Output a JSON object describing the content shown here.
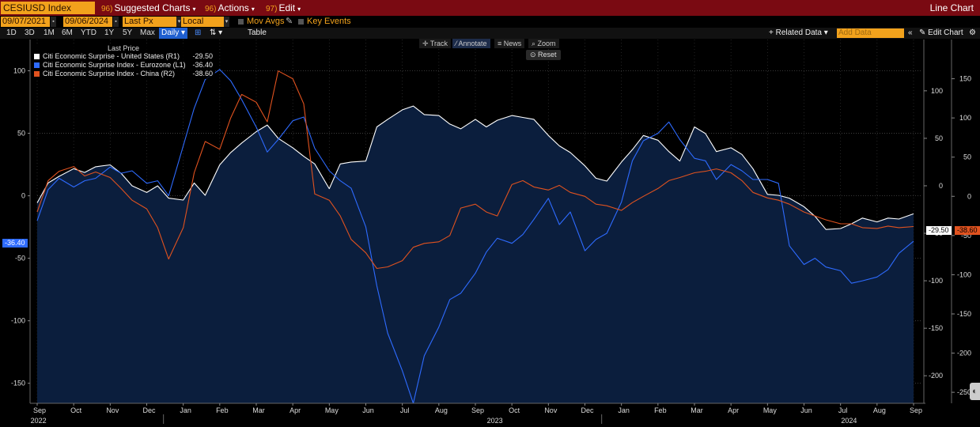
{
  "topbar": {
    "ticker": "CESIUSD Index",
    "menus": [
      {
        "num": "96)",
        "label": "Suggested Charts"
      },
      {
        "num": "96)",
        "label": "Actions"
      },
      {
        "num": "97)",
        "label": "Edit"
      }
    ],
    "chart_type": "Line Chart"
  },
  "fields": {
    "start_date": "09/07/2021",
    "end_date": "09/06/2024",
    "price_field": "Last Px",
    "currency": "Local CCY",
    "mov_avgs": "Mov Avgs",
    "key_events": "Key Events"
  },
  "periods": [
    "1D",
    "3D",
    "1M",
    "6M",
    "YTD",
    "1Y",
    "5Y",
    "Max"
  ],
  "frequency": "Daily",
  "table_label": "Table",
  "related_data": "+ Related Data",
  "add_data_placeholder": "Add Data",
  "edit_chart": "Edit Chart",
  "tools": {
    "track": "Track",
    "annotate": "Annotate",
    "news": "News",
    "zoom": "Zoom",
    "reset": "Reset"
  },
  "legend": {
    "title": "Last Price",
    "items": [
      {
        "name": "Citi Economic Surprise - United States  (R1)",
        "value": "-29.50",
        "color": "#ffffff"
      },
      {
        "name": "Citi Economic Surprise Index - Eurozone  (L1)",
        "value": "-36.40",
        "color": "#2e6bff"
      },
      {
        "name": "Citi Economic Surprise Index - China  (R2)",
        "value": "-38.60",
        "color": "#e0521f"
      }
    ]
  },
  "tags": {
    "eurozone": "-36.40",
    "us": "-29.50",
    "china": "-38.60"
  },
  "colors": {
    "bar_red": "#7a0a12",
    "field_orange": "#f2a21c",
    "us": "#ffffff",
    "eurozone": "#2e6bff",
    "china": "#e0521f",
    "fill": "#0b1e3d"
  },
  "chart_data": {
    "type": "line",
    "x_months": [
      "Sep",
      "Oct",
      "Nov",
      "Dec",
      "Jan",
      "Feb",
      "Mar",
      "Apr",
      "May",
      "Jun",
      "Jul",
      "Aug",
      "Sep",
      "Oct",
      "Nov",
      "Dec",
      "Jan",
      "Feb",
      "Mar",
      "Apr",
      "May",
      "Jun",
      "Jul",
      "Aug",
      "Sep"
    ],
    "x_years": [
      "2022",
      "2023",
      "2024"
    ],
    "left_axis": {
      "ticks": [
        100,
        50,
        0,
        -50,
        -100,
        -150
      ],
      "range": [
        -166,
        125
      ]
    },
    "r1_axis": {
      "ticks": [
        100,
        50,
        0,
        -50,
        -100,
        -150,
        -200
      ],
      "range": [
        -229,
        154
      ]
    },
    "r2_axis": {
      "ticks": [
        150,
        100,
        50,
        0,
        -50,
        -100,
        -150,
        -200,
        -250
      ],
      "range": [
        -264,
        200
      ]
    },
    "series": [
      {
        "name": "Citi Economic Surprise - United States  (R1)",
        "axis": "r1",
        "fill": true,
        "x": [
          0,
          0.3,
          0.6,
          1,
          1.3,
          1.6,
          2,
          2.3,
          2.6,
          3,
          3.3,
          3.6,
          4,
          4.3,
          4.6,
          5,
          5.3,
          5.6,
          6,
          6.3,
          6.6,
          7,
          7.3,
          7.6,
          8,
          8.3,
          8.6,
          9,
          9.3,
          9.6,
          10,
          10.3,
          10.6,
          11,
          11.3,
          11.6,
          12,
          12.3,
          12.6,
          13,
          13.3,
          13.6,
          14,
          14.3,
          14.6,
          15,
          15.3,
          15.6,
          16,
          16.3,
          16.6,
          17,
          17.3,
          17.6,
          18,
          18.3,
          18.6,
          19,
          19.3,
          19.6,
          20,
          20.3,
          20.6,
          21,
          21.3,
          21.6,
          22,
          22.3,
          22.6,
          23,
          23.3,
          23.6,
          24
        ],
        "values": [
          -18,
          3,
          10,
          18,
          14,
          20,
          22,
          13,
          0,
          -7,
          0,
          -13,
          -15,
          3,
          -10,
          22,
          35,
          45,
          57,
          64,
          50,
          40,
          31,
          23,
          -3,
          23,
          25,
          26,
          62,
          70,
          80,
          84,
          75,
          74,
          65,
          60,
          70,
          62,
          69,
          74,
          72,
          70,
          53,
          42,
          35,
          21,
          8,
          5,
          25,
          38,
          53,
          48,
          36,
          26,
          62,
          55,
          36,
          40,
          33,
          18,
          -9,
          -10,
          -13,
          -22,
          -32,
          -46,
          -45,
          -40,
          -34,
          -38,
          -34,
          -35,
          -29.5
        ]
      },
      {
        "name": "Citi Economic Surprise Index - Eurozone  (L1)",
        "axis": "l1",
        "fill": false,
        "x": [
          0,
          0.3,
          0.6,
          1,
          1.3,
          1.6,
          2,
          2.3,
          2.6,
          3,
          3.3,
          3.6,
          4,
          4.3,
          4.6,
          5,
          5.3,
          5.6,
          6,
          6.3,
          6.6,
          7,
          7.3,
          7.6,
          8,
          8.3,
          8.6,
          9,
          9.3,
          9.6,
          10,
          10.3,
          10.6,
          11,
          11.3,
          11.6,
          12,
          12.3,
          12.6,
          13,
          13.3,
          13.6,
          14,
          14.3,
          14.6,
          15,
          15.3,
          15.6,
          16,
          16.3,
          16.6,
          17,
          17.3,
          17.6,
          18,
          18.3,
          18.6,
          19,
          19.3,
          19.6,
          20,
          20.3,
          20.6,
          21,
          21.3,
          21.6,
          22,
          22.3,
          22.6,
          23,
          23.3,
          23.6,
          24
        ],
        "values": [
          -20,
          5,
          14,
          7,
          12,
          14,
          23,
          18,
          20,
          10,
          12,
          0,
          40,
          70,
          93,
          101,
          92,
          77,
          55,
          35,
          45,
          60,
          63,
          38,
          20,
          12,
          6,
          -25,
          -72,
          -110,
          -140,
          -166,
          -128,
          -105,
          -83,
          -78,
          -62,
          -45,
          -34,
          -38,
          -31,
          -19,
          -2,
          -23,
          -13,
          -44,
          -35,
          -30,
          -5,
          28,
          44,
          50,
          59,
          45,
          30,
          28,
          13,
          25,
          20,
          13,
          13,
          10,
          -40,
          -55,
          -50,
          -57,
          -60,
          -70,
          -68,
          -65,
          -59,
          -46,
          -36.4
        ]
      },
      {
        "name": "Citi Economic Surprise Index - China  (R2)",
        "axis": "r2",
        "fill": false,
        "x": [
          0,
          0.3,
          0.6,
          1,
          1.3,
          1.6,
          2,
          2.3,
          2.6,
          3,
          3.3,
          3.6,
          4,
          4.3,
          4.6,
          5,
          5.3,
          5.6,
          6,
          6.3,
          6.6,
          7,
          7.3,
          7.6,
          8,
          8.3,
          8.6,
          9,
          9.3,
          9.6,
          10,
          10.3,
          10.6,
          11,
          11.3,
          11.6,
          12,
          12.3,
          12.6,
          13,
          13.3,
          13.6,
          14,
          14.3,
          14.6,
          15,
          15.3,
          15.6,
          16,
          16.3,
          16.6,
          17,
          17.3,
          17.6,
          18,
          18.3,
          18.6,
          19,
          19.3,
          19.6,
          20,
          20.3,
          20.6,
          21,
          21.3,
          21.6,
          22,
          22.3,
          22.6,
          23,
          23.3,
          23.6,
          24
        ],
        "values": [
          -20,
          20,
          32,
          38,
          26,
          31,
          24,
          10,
          -5,
          -16,
          -40,
          -80,
          -40,
          30,
          70,
          60,
          100,
          130,
          120,
          95,
          160,
          150,
          118,
          3,
          -5,
          -25,
          -55,
          -72,
          -92,
          -90,
          -82,
          -65,
          -60,
          -58,
          -50,
          -15,
          -10,
          -20,
          -25,
          15,
          20,
          12,
          8,
          14,
          5,
          0,
          -10,
          -12,
          -18,
          -8,
          0,
          10,
          20,
          24,
          30,
          32,
          35,
          30,
          20,
          5,
          -2,
          -5,
          -10,
          -20,
          -25,
          -30,
          -35,
          -35,
          -40,
          -41,
          -38,
          -40,
          -38.6
        ]
      }
    ],
    "grid": true,
    "legend_position": "top-left"
  }
}
